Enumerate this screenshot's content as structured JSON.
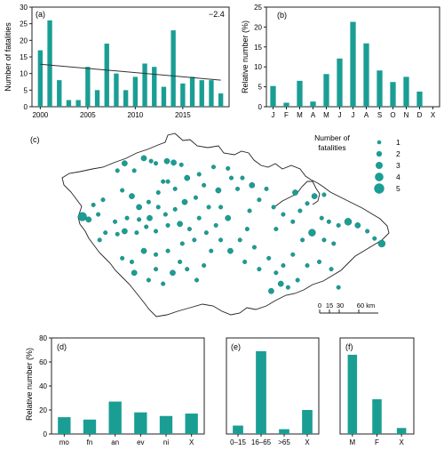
{
  "colors": {
    "bar": "#1a9e94",
    "axis": "#222222",
    "border": "#222222",
    "trend": "#333333"
  },
  "panels": {
    "a": {
      "label": "(a)"
    },
    "b": {
      "label": "(b)"
    },
    "c": {
      "label": "(c)"
    },
    "d": {
      "label": "(d)"
    },
    "e": {
      "label": "(e)"
    },
    "f": {
      "label": "(f)"
    }
  },
  "chart_data": [
    {
      "panel": "a",
      "type": "bar",
      "ylabel": "Number of fatalities",
      "xlabel": "",
      "x": [
        2000,
        2001,
        2002,
        2003,
        2004,
        2005,
        2006,
        2007,
        2008,
        2009,
        2010,
        2011,
        2012,
        2013,
        2014,
        2015,
        2016,
        2017,
        2018,
        2019
      ],
      "values": [
        17,
        26,
        8,
        2,
        2,
        12,
        5,
        19,
        10,
        5,
        9,
        13,
        12,
        6,
        23,
        7,
        9,
        8,
        8,
        4
      ],
      "x_ticks": [
        2000,
        2005,
        2010,
        2015
      ],
      "ylim": [
        0,
        30
      ],
      "y_ticks": [
        0,
        5,
        10,
        15,
        20,
        25,
        30
      ],
      "trend": {
        "type": "linear",
        "start": [
          2000,
          12.8
        ],
        "end": [
          2019,
          8.0
        ],
        "label": "−2.4"
      }
    },
    {
      "panel": "b",
      "type": "bar",
      "ylabel": "Relative number (%)",
      "categories": [
        "J",
        "F",
        "M",
        "A",
        "M",
        "J",
        "J",
        "A",
        "S",
        "O",
        "N",
        "D",
        "X"
      ],
      "values": [
        5.2,
        1.0,
        6.5,
        1.3,
        8.2,
        12.1,
        21.3,
        15.9,
        9.1,
        6.2,
        7.5,
        3.8,
        0
      ],
      "ylim": [
        0,
        25
      ],
      "y_ticks": [
        0,
        5,
        10,
        15,
        20,
        25
      ]
    },
    {
      "panel": "c",
      "type": "scatter",
      "title": "",
      "legend": {
        "title_line1": "Number of",
        "title_line2": "fatalities",
        "sizes": [
          1,
          2,
          3,
          4,
          5
        ],
        "position": "top-right"
      },
      "scalebar": {
        "ticks": [
          "0",
          "15",
          "30",
          "60 km"
        ]
      },
      "points": [
        {
          "lon": 12.52,
          "lat": 49.92,
          "n": 4
        },
        {
          "lon": 12.65,
          "lat": 49.88,
          "n": 2
        },
        {
          "lon": 12.85,
          "lat": 49.95,
          "n": 1
        },
        {
          "lon": 12.75,
          "lat": 50.08,
          "n": 1
        },
        {
          "lon": 12.95,
          "lat": 50.15,
          "n": 1
        },
        {
          "lon": 12.88,
          "lat": 49.6,
          "n": 1
        },
        {
          "lon": 13.25,
          "lat": 50.55,
          "n": 1
        },
        {
          "lon": 13.4,
          "lat": 50.65,
          "n": 2
        },
        {
          "lon": 13.6,
          "lat": 50.55,
          "n": 1
        },
        {
          "lon": 13.8,
          "lat": 50.72,
          "n": 2
        },
        {
          "lon": 13.95,
          "lat": 50.68,
          "n": 1
        },
        {
          "lon": 14.05,
          "lat": 50.65,
          "n": 1
        },
        {
          "lon": 14.28,
          "lat": 50.68,
          "n": 2
        },
        {
          "lon": 14.42,
          "lat": 50.66,
          "n": 2
        },
        {
          "lon": 14.58,
          "lat": 50.63,
          "n": 1
        },
        {
          "lon": 14.2,
          "lat": 50.4,
          "n": 1
        },
        {
          "lon": 13.35,
          "lat": 50.28,
          "n": 1
        },
        {
          "lon": 13.55,
          "lat": 50.2,
          "n": 2
        },
        {
          "lon": 13.7,
          "lat": 50.05,
          "n": 2
        },
        {
          "lon": 13.9,
          "lat": 50.12,
          "n": 1
        },
        {
          "lon": 14.1,
          "lat": 50.25,
          "n": 1
        },
        {
          "lon": 14.3,
          "lat": 50.4,
          "n": 1
        },
        {
          "lon": 14.45,
          "lat": 50.3,
          "n": 1
        },
        {
          "lon": 14.7,
          "lat": 50.45,
          "n": 2
        },
        {
          "lon": 14.95,
          "lat": 50.5,
          "n": 1
        },
        {
          "lon": 15.25,
          "lat": 50.6,
          "n": 1
        },
        {
          "lon": 15.55,
          "lat": 50.58,
          "n": 1
        },
        {
          "lon": 15.62,
          "lat": 50.45,
          "n": 1
        },
        {
          "lon": 15.85,
          "lat": 50.45,
          "n": 1
        },
        {
          "lon": 15.75,
          "lat": 50.3,
          "n": 1
        },
        {
          "lon": 15.35,
          "lat": 50.28,
          "n": 2
        },
        {
          "lon": 15.05,
          "lat": 50.35,
          "n": 1
        },
        {
          "lon": 14.88,
          "lat": 50.18,
          "n": 1
        },
        {
          "lon": 14.65,
          "lat": 50.12,
          "n": 2
        },
        {
          "lon": 14.45,
          "lat": 50.02,
          "n": 1
        },
        {
          "lon": 14.25,
          "lat": 49.95,
          "n": 1
        },
        {
          "lon": 14.1,
          "lat": 50.05,
          "n": 1
        },
        {
          "lon": 13.92,
          "lat": 49.9,
          "n": 2
        },
        {
          "lon": 13.7,
          "lat": 49.88,
          "n": 1
        },
        {
          "lon": 13.45,
          "lat": 49.9,
          "n": 1
        },
        {
          "lon": 13.2,
          "lat": 49.85,
          "n": 1
        },
        {
          "lon": 13.0,
          "lat": 49.7,
          "n": 1
        },
        {
          "lon": 13.25,
          "lat": 49.68,
          "n": 1
        },
        {
          "lon": 13.4,
          "lat": 49.72,
          "n": 2
        },
        {
          "lon": 13.65,
          "lat": 49.7,
          "n": 1
        },
        {
          "lon": 13.85,
          "lat": 49.78,
          "n": 1
        },
        {
          "lon": 14.05,
          "lat": 49.72,
          "n": 1
        },
        {
          "lon": 14.3,
          "lat": 49.8,
          "n": 1
        },
        {
          "lon": 14.55,
          "lat": 49.82,
          "n": 2
        },
        {
          "lon": 14.75,
          "lat": 49.75,
          "n": 1
        },
        {
          "lon": 14.95,
          "lat": 49.9,
          "n": 1
        },
        {
          "lon": 15.15,
          "lat": 50.05,
          "n": 1
        },
        {
          "lon": 15.4,
          "lat": 50.05,
          "n": 1
        },
        {
          "lon": 15.55,
          "lat": 49.9,
          "n": 2
        },
        {
          "lon": 15.3,
          "lat": 49.8,
          "n": 1
        },
        {
          "lon": 15.1,
          "lat": 49.7,
          "n": 1
        },
        {
          "lon": 14.85,
          "lat": 49.6,
          "n": 1
        },
        {
          "lon": 14.6,
          "lat": 49.55,
          "n": 1
        },
        {
          "lon": 14.3,
          "lat": 49.45,
          "n": 1
        },
        {
          "lon": 14.05,
          "lat": 49.4,
          "n": 1
        },
        {
          "lon": 13.8,
          "lat": 49.45,
          "n": 2
        },
        {
          "lon": 13.55,
          "lat": 49.3,
          "n": 1
        },
        {
          "lon": 13.35,
          "lat": 49.35,
          "n": 1
        },
        {
          "lon": 13.6,
          "lat": 49.15,
          "n": 2
        },
        {
          "lon": 13.9,
          "lat": 49.05,
          "n": 1
        },
        {
          "lon": 14.05,
          "lat": 49.2,
          "n": 1
        },
        {
          "lon": 14.2,
          "lat": 49.0,
          "n": 1
        },
        {
          "lon": 14.4,
          "lat": 49.15,
          "n": 2
        },
        {
          "lon": 14.55,
          "lat": 49.3,
          "n": 1
        },
        {
          "lon": 14.7,
          "lat": 49.2,
          "n": 1
        },
        {
          "lon": 14.9,
          "lat": 49.05,
          "n": 1
        },
        {
          "lon": 15.05,
          "lat": 49.25,
          "n": 1
        },
        {
          "lon": 15.2,
          "lat": 49.45,
          "n": 1
        },
        {
          "lon": 15.4,
          "lat": 49.6,
          "n": 1
        },
        {
          "lon": 15.6,
          "lat": 49.45,
          "n": 2
        },
        {
          "lon": 15.8,
          "lat": 49.6,
          "n": 1
        },
        {
          "lon": 15.95,
          "lat": 49.75,
          "n": 1
        },
        {
          "lon": 16.0,
          "lat": 50.0,
          "n": 1
        },
        {
          "lon": 16.2,
          "lat": 50.15,
          "n": 1
        },
        {
          "lon": 16.35,
          "lat": 50.3,
          "n": 1
        },
        {
          "lon": 16.05,
          "lat": 50.35,
          "n": 2
        },
        {
          "lon": 16.5,
          "lat": 50.05,
          "n": 1
        },
        {
          "lon": 16.7,
          "lat": 49.95,
          "n": 1
        },
        {
          "lon": 16.9,
          "lat": 49.85,
          "n": 1
        },
        {
          "lon": 17.2,
          "lat": 50.1,
          "n": 1
        },
        {
          "lon": 17.35,
          "lat": 50.2,
          "n": 2
        },
        {
          "lon": 17.05,
          "lat": 50.0,
          "n": 1
        },
        {
          "lon": 17.5,
          "lat": 49.9,
          "n": 1
        },
        {
          "lon": 17.65,
          "lat": 49.85,
          "n": 1
        },
        {
          "lon": 17.85,
          "lat": 49.8,
          "n": 1
        },
        {
          "lon": 18.05,
          "lat": 49.85,
          "n": 3
        },
        {
          "lon": 18.25,
          "lat": 49.8,
          "n": 2
        },
        {
          "lon": 18.45,
          "lat": 49.72,
          "n": 1
        },
        {
          "lon": 18.6,
          "lat": 49.62,
          "n": 1
        },
        {
          "lon": 18.75,
          "lat": 49.55,
          "n": 3
        },
        {
          "lon": 17.75,
          "lat": 49.55,
          "n": 1
        },
        {
          "lon": 17.55,
          "lat": 49.6,
          "n": 1
        },
        {
          "lon": 17.3,
          "lat": 49.7,
          "n": 3
        },
        {
          "lon": 17.1,
          "lat": 49.6,
          "n": 1
        },
        {
          "lon": 16.9,
          "lat": 49.4,
          "n": 1
        },
        {
          "lon": 16.7,
          "lat": 49.25,
          "n": 1
        },
        {
          "lon": 16.55,
          "lat": 49.15,
          "n": 1
        },
        {
          "lon": 16.65,
          "lat": 49.0,
          "n": 2
        },
        {
          "lon": 16.8,
          "lat": 48.95,
          "n": 1
        },
        {
          "lon": 17.0,
          "lat": 49.05,
          "n": 1
        },
        {
          "lon": 17.2,
          "lat": 49.25,
          "n": 1
        },
        {
          "lon": 17.45,
          "lat": 49.3,
          "n": 1
        },
        {
          "lon": 17.7,
          "lat": 49.2,
          "n": 1
        },
        {
          "lon": 17.85,
          "lat": 48.95,
          "n": 1
        },
        {
          "lon": 16.4,
          "lat": 49.35,
          "n": 1
        },
        {
          "lon": 16.2,
          "lat": 49.2,
          "n": 1
        },
        {
          "lon": 16.45,
          "lat": 48.9,
          "n": 2
        },
        {
          "lon": 16.95,
          "lat": 50.25,
          "n": 2
        },
        {
          "lon": 17.55,
          "lat": 50.22,
          "n": 1
        },
        {
          "lon": 16.1,
          "lat": 49.5,
          "n": 1
        },
        {
          "lon": 15.9,
          "lat": 49.3,
          "n": 1
        },
        {
          "lon": 16.55,
          "lat": 49.75,
          "n": 1
        }
      ]
    },
    {
      "panel": "d",
      "type": "bar",
      "ylabel": "Relative number (%)",
      "categories": [
        "mo",
        "fn",
        "an",
        "ev",
        "ni",
        "X"
      ],
      "values": [
        14,
        12,
        27,
        18,
        15,
        17
      ],
      "ylim": [
        0,
        80
      ],
      "y_ticks": [
        0,
        20,
        40,
        60,
        80
      ]
    },
    {
      "panel": "e",
      "type": "bar",
      "categories": [
        "0–15",
        "16–65",
        ">65",
        "X"
      ],
      "values": [
        7,
        69,
        4,
        20
      ],
      "ylim": [
        0,
        80
      ]
    },
    {
      "panel": "f",
      "type": "bar",
      "categories": [
        "M",
        "F",
        "X"
      ],
      "values": [
        66,
        29,
        5
      ],
      "ylim": [
        0,
        80
      ]
    }
  ]
}
